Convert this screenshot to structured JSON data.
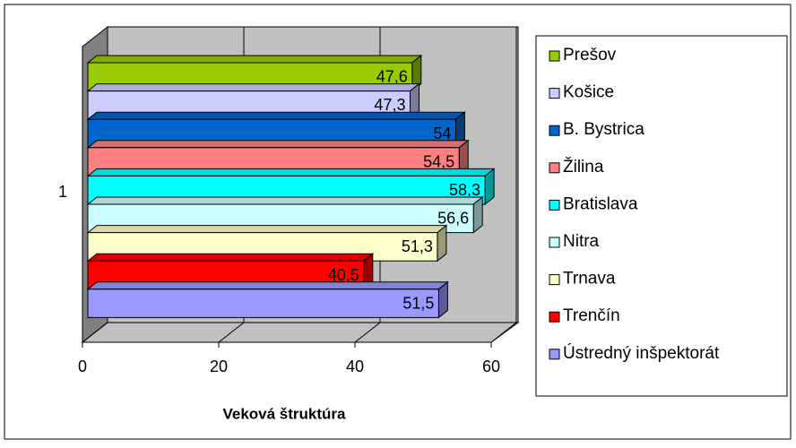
{
  "chart_data": {
    "type": "bar",
    "orientation": "horizontal",
    "x_label": "Veková štruktúra",
    "categories": [
      "1"
    ],
    "series": [
      {
        "name": "Prešov",
        "color": "#99cc00",
        "values": [
          47.6
        ],
        "value_labels": [
          "47,6"
        ]
      },
      {
        "name": "Košice",
        "color": "#ccccff",
        "values": [
          47.3
        ],
        "value_labels": [
          "47,3"
        ]
      },
      {
        "name": "B. Bystrica",
        "color": "#0066cc",
        "values": [
          54
        ],
        "value_labels": [
          "54"
        ]
      },
      {
        "name": "Žilina",
        "color": "#ff8080",
        "values": [
          54.5
        ],
        "value_labels": [
          "54,5"
        ]
      },
      {
        "name": "Bratislava",
        "color": "#00ffff",
        "values": [
          58.3
        ],
        "value_labels": [
          "58,3"
        ]
      },
      {
        "name": "Nitra",
        "color": "#ccffff",
        "values": [
          56.6
        ],
        "value_labels": [
          "56,6"
        ]
      },
      {
        "name": "Trnava",
        "color": "#ffffcc",
        "values": [
          51.3
        ],
        "value_labels": [
          "51,3"
        ]
      },
      {
        "name": "Trenčín",
        "color": "#ff0000",
        "values": [
          40.5
        ],
        "value_labels": [
          "40,5"
        ]
      },
      {
        "name": "Ústredný inšpektorát",
        "color": "#9999ff",
        "values": [
          51.5
        ],
        "value_labels": [
          "51,5"
        ]
      }
    ],
    "xlim": [
      0,
      60
    ],
    "xticks": [
      0,
      20,
      40,
      60
    ],
    "grid": true,
    "legend": "right"
  }
}
